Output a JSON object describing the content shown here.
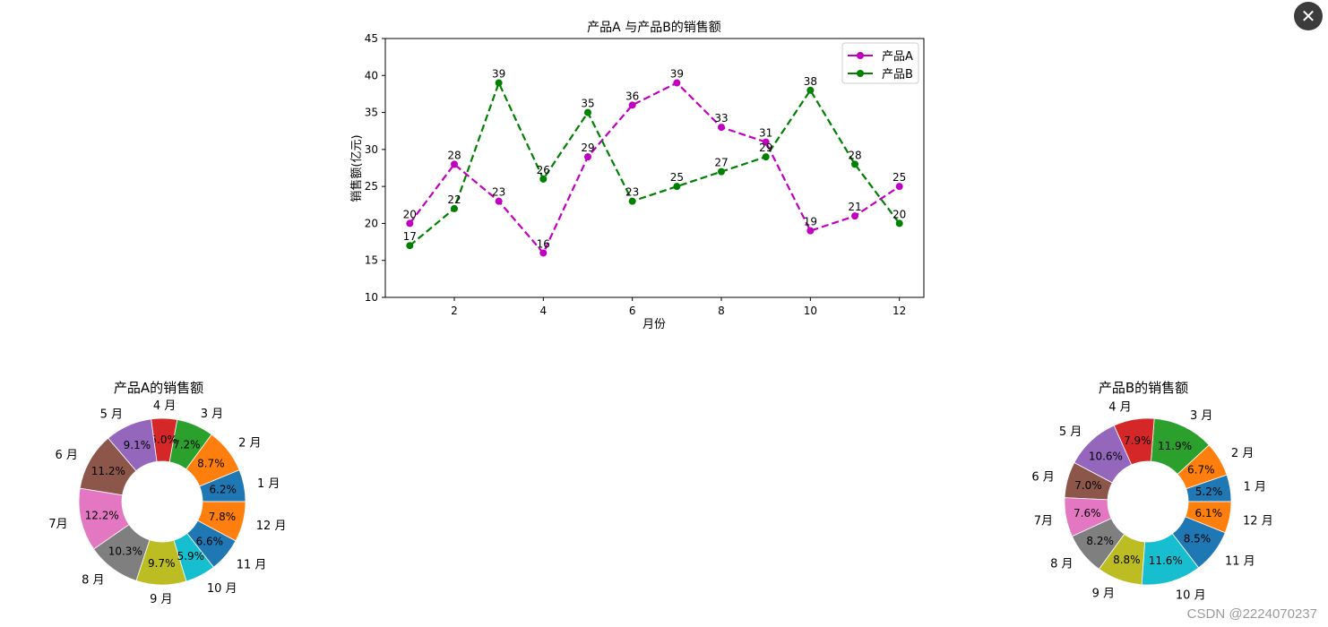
{
  "chart_data": [
    {
      "type": "line",
      "title": "产品A 与产品B的销售额",
      "xlabel": "月份",
      "ylabel": "销售额(亿元)",
      "x": [
        1,
        2,
        3,
        4,
        5,
        6,
        7,
        8,
        9,
        10,
        11,
        12
      ],
      "xticks": [
        "2",
        "4",
        "6",
        "8",
        "10",
        "12"
      ],
      "yticks": [
        "10",
        "15",
        "20",
        "25",
        "30",
        "35",
        "40",
        "45"
      ],
      "xlim": [
        0.45,
        12.55
      ],
      "ylim": [
        10,
        45
      ],
      "legend": "top-right",
      "grid": false,
      "series": [
        {
          "name": "产品A",
          "color": "#c000c0",
          "values": [
            20,
            28,
            23,
            16,
            29,
            36,
            39,
            33,
            31,
            19,
            21,
            25
          ]
        },
        {
          "name": "产品B",
          "color": "#008000",
          "values": [
            17,
            22,
            39,
            26,
            35,
            23,
            25,
            27,
            29,
            38,
            28,
            20
          ]
        }
      ]
    },
    {
      "type": "pie",
      "style": "donut",
      "title": "产品A的销售额",
      "labels": [
        "1 月",
        "2 月",
        "3 月",
        "4 月",
        "5 月",
        "6 月",
        "7月",
        "8 月",
        "9 月",
        "10 月",
        "11 月",
        "12 月"
      ],
      "values": [
        6.2,
        8.7,
        7.2,
        5.0,
        9.1,
        11.2,
        12.2,
        10.3,
        9.7,
        5.9,
        6.6,
        7.8
      ],
      "pct_labels": [
        "6.2%",
        "8.7%",
        "7.2%",
        "5.0%",
        "9.1%",
        "11.2%",
        "12.2%",
        "10.3%",
        "9.7%",
        "5.9%",
        "6.6%",
        "7.8%"
      ]
    },
    {
      "type": "pie",
      "style": "donut",
      "title": "产品B的销售额",
      "labels": [
        "1 月",
        "2 月",
        "3 月",
        "4 月",
        "5 月",
        "6 月",
        "7月",
        "8 月",
        "9 月",
        "10 月",
        "11 月",
        "12 月"
      ],
      "values": [
        5.2,
        6.7,
        11.9,
        7.9,
        10.6,
        7.0,
        7.6,
        8.2,
        8.8,
        11.6,
        8.5,
        6.1
      ],
      "pct_labels": [
        "5.2%",
        "6.7%",
        "11.9%",
        "7.9%",
        "10.6%",
        "7.0%",
        "7.6%",
        "8.2%",
        "8.8%",
        "11.6%",
        "8.5%",
        "6.1%"
      ]
    }
  ],
  "pie_colors": [
    "#1f77b4",
    "#ff7f0e",
    "#2ca02c",
    "#d62728",
    "#9467bd",
    "#8c564b",
    "#e377c2",
    "#7f7f7f",
    "#bcbd22",
    "#17becf",
    "#1f77b4",
    "#ff7f0e"
  ],
  "watermark": "CSDN @2224070237",
  "close_icon": "close-icon"
}
